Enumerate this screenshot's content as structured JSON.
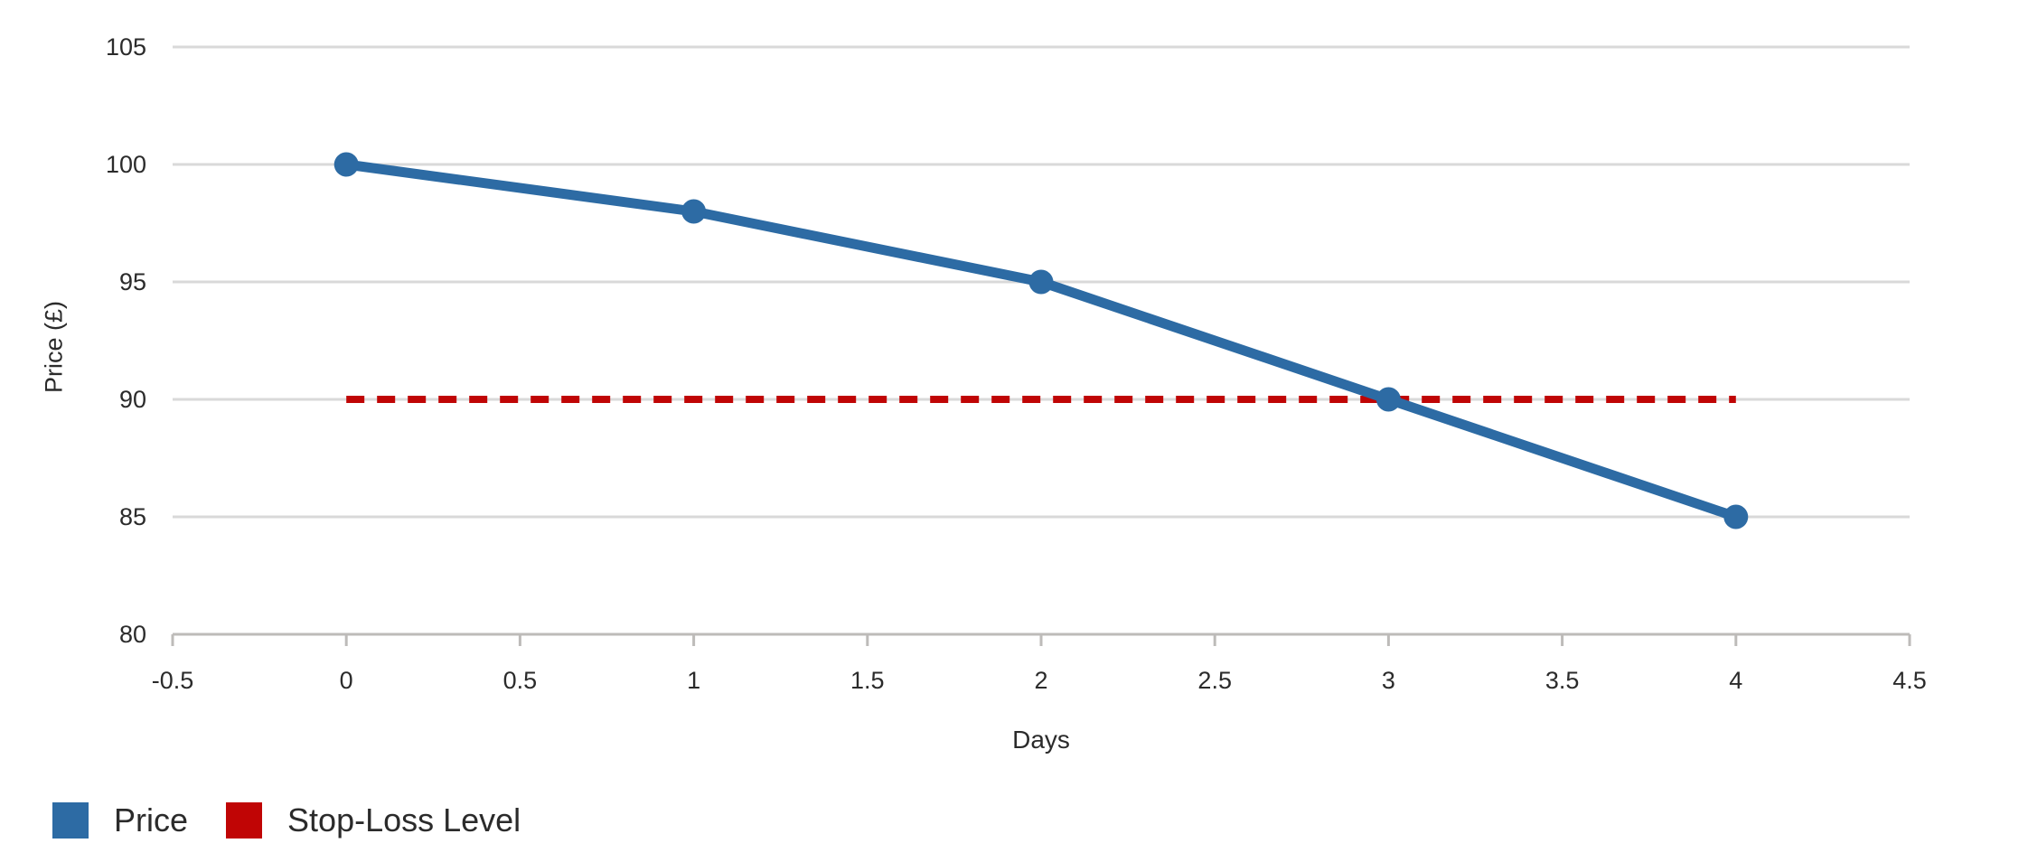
{
  "chart_data": {
    "type": "line",
    "title": "",
    "xlabel": "Days",
    "ylabel": "Price (£)",
    "x": [
      0,
      1,
      2,
      3,
      4
    ],
    "series": [
      {
        "name": "Price",
        "values": [
          100,
          98,
          95,
          90,
          85
        ],
        "color": "#2D6BA4",
        "style": "solid",
        "markers": true
      },
      {
        "name": "Stop-Loss Level",
        "values": [
          90,
          90,
          90,
          90,
          90
        ],
        "color": "#C00505",
        "style": "dashed",
        "markers": false
      }
    ],
    "xlim": [
      -0.5,
      4.5
    ],
    "ylim": [
      80,
      105
    ],
    "x_ticks": [
      -0.5,
      0,
      0.5,
      1,
      1.5,
      2,
      2.5,
      3,
      3.5,
      4,
      4.5
    ],
    "x_tick_labels": [
      "-0.5",
      "0",
      "0.5",
      "1",
      "1.5",
      "2",
      "2.5",
      "3",
      "3.5",
      "4",
      "4.5"
    ],
    "y_ticks": [
      80,
      85,
      90,
      95,
      100,
      105
    ],
    "y_tick_labels": [
      "80",
      "85",
      "90",
      "95",
      "100",
      "105"
    ],
    "grid": "horizontal",
    "legend_position": "bottom-left",
    "colors": {
      "grid": "#D9D9D9",
      "axis": "#BDBBB9",
      "text": "#2B2B2B",
      "background": "#FFFFFF"
    }
  }
}
